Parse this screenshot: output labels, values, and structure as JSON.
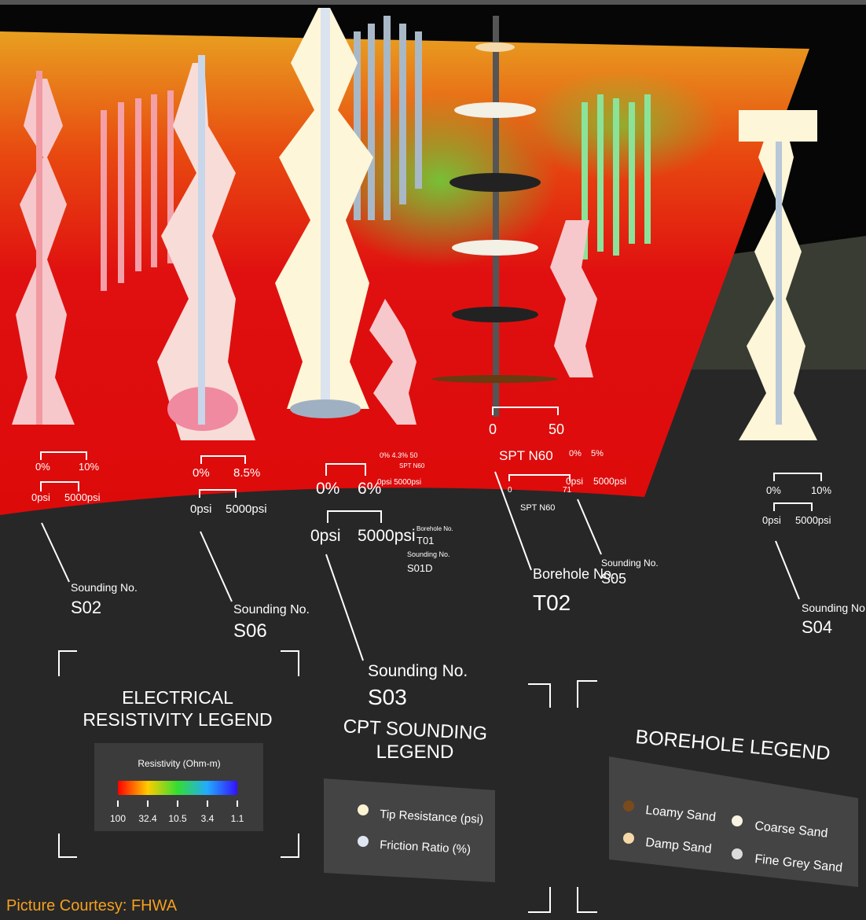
{
  "soundings": [
    {
      "ratio_min": "0%",
      "ratio_max": "10%",
      "tip_min": "0psi",
      "tip_max": "5000psi",
      "label": "Sounding No.",
      "id": "S02"
    },
    {
      "ratio_min": "0%",
      "ratio_max": "8.5%",
      "tip_min": "0psi",
      "tip_max": "5000psi",
      "label": "Sounding No.",
      "id": "S06"
    },
    {
      "ratio_min": "0%",
      "ratio_max": "6%",
      "tip_min": "0psi",
      "tip_max": "5000psi",
      "label": "Sounding No.",
      "id": "S03"
    },
    {
      "ratio_min": "0%",
      "ratio_max": "5%",
      "tip_min": "0psi",
      "tip_max": "5000psi",
      "label": "Sounding No.",
      "id": "S05"
    },
    {
      "ratio_min": "0%",
      "ratio_max": "10%",
      "tip_min": "0psi",
      "tip_max": "5000psi",
      "label": "Sounding No.",
      "id": "S04"
    }
  ],
  "t01": {
    "scale": "0% 4.3% 50",
    "spt": "SPT N60",
    "tip": "0psi 5000psi",
    "borehole_label": "Borehole No.",
    "borehole_id": "T01",
    "sounding_label": "Sounding No.",
    "sounding_id": "S01D"
  },
  "t02": {
    "spt_min": "0",
    "spt_max": "50",
    "spt": "SPT N60",
    "label": "Borehole No.",
    "id": "T02"
  },
  "spt2": {
    "spt_min": "0",
    "spt_max": "71",
    "spt": "SPT N60"
  },
  "resistivity_legend": {
    "title": [
      "ELECTRICAL",
      "RESISTIVITY LEGEND"
    ],
    "unit": "Resistivity (Ohm-m)",
    "ticks": [
      "100",
      "32.4",
      "10.5",
      "3.4",
      "1.1"
    ]
  },
  "cpt_legend": {
    "title": [
      "CPT SOUNDING",
      "LEGEND"
    ],
    "items": [
      "Tip Resistance (psi)",
      "Friction Ratio (%)"
    ]
  },
  "borehole_legend": {
    "title": "BOREHOLE LEGEND",
    "items": [
      "Loamy Sand",
      "Coarse Sand",
      "Damp Sand",
      "Fine Grey Sand"
    ]
  },
  "caption": "Picture Courtesy:  FHWA"
}
